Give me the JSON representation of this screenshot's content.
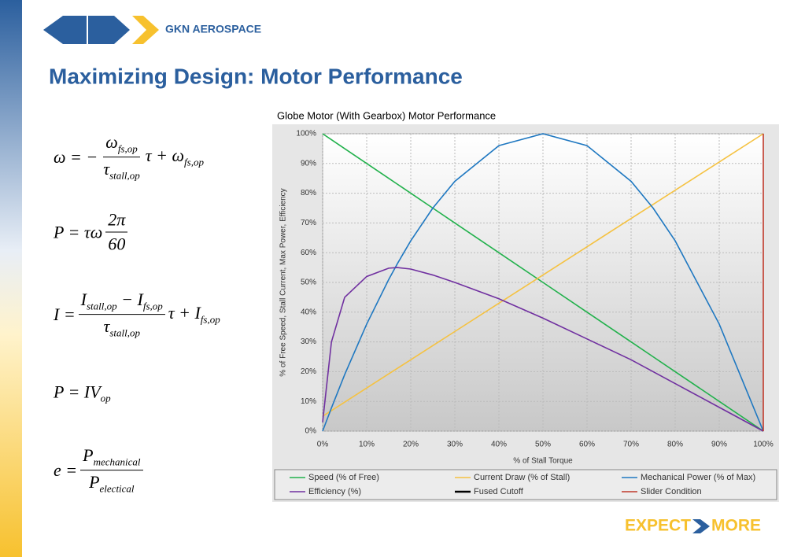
{
  "header": {
    "logo_text": "GKN AEROSPACE",
    "title": "Maximizing Design: Motor Performance"
  },
  "equations": [
    {
      "lhs": [
        {
          "text": "ω = −"
        }
      ],
      "num": [
        {
          "text": "ω",
          "sub": "fs,op"
        }
      ],
      "den": [
        {
          "text": "τ",
          "sub": "stall,op"
        }
      ],
      "rhs": [
        {
          "text": "τ + ω",
          "sub": "fs,op"
        }
      ]
    },
    {
      "lhs": [
        {
          "text": "P = τω"
        }
      ],
      "num": [
        {
          "text": "2π"
        }
      ],
      "den": [
        {
          "text": "60"
        }
      ]
    },
    {
      "lhs": [
        {
          "text": "I ="
        }
      ],
      "num": [
        {
          "text": "I",
          "sub": "stall,op"
        },
        {
          "text": " − I",
          "sub": "fs,op"
        }
      ],
      "den": [
        {
          "text": "τ",
          "sub": "stall,op"
        }
      ],
      "rhs": [
        {
          "text": "τ + I",
          "sub": "fs,op"
        }
      ]
    },
    {
      "lhs": [
        {
          "text": "P = IV",
          "sub": "op"
        }
      ]
    },
    {
      "lhs": [
        {
          "text": "e ="
        }
      ],
      "num": [
        {
          "text": "P",
          "sub": "mechanical"
        }
      ],
      "den": [
        {
          "text": "P",
          "sub": "electical"
        }
      ]
    }
  ],
  "footer": {
    "left": "EXPECT",
    "right": "MORE"
  },
  "chart_data": {
    "type": "line",
    "title": "Globe Motor (With Gearbox) Motor Performance",
    "x_label": "% of Stall Torque",
    "y_label": "% of Free Speed, Stall Current, Max Power, Efficiency",
    "x": [
      0,
      2,
      5,
      10,
      15,
      17,
      20,
      25,
      30,
      40,
      50,
      60,
      70,
      75,
      80,
      90,
      100
    ],
    "series": [
      {
        "name": "Speed (% of Free)",
        "color": "#22b14c",
        "values": [
          100,
          98,
          95,
          90,
          85,
          83,
          80,
          75,
          70,
          60,
          50,
          40,
          30,
          25,
          20,
          10,
          0
        ]
      },
      {
        "name": "Current Draw (% of Stall)",
        "color": "#f5c242",
        "values": [
          5,
          6.9,
          9.75,
          14.5,
          19.25,
          21.15,
          24,
          28.75,
          33.5,
          43,
          52.5,
          62,
          71.5,
          76.25,
          81,
          90.5,
          100
        ]
      },
      {
        "name": "Mechanical Power (% of Max)",
        "color": "#1f78c1",
        "values": [
          0,
          7.8,
          19,
          36,
          51,
          56.4,
          64,
          75,
          84,
          96,
          100,
          96,
          84,
          75,
          64,
          36,
          0
        ]
      },
      {
        "name": "Efficiency (%)",
        "color": "#7030a0",
        "values": [
          3,
          30,
          45,
          52,
          54.8,
          55,
          54.5,
          52.5,
          50,
          44.5,
          38,
          31,
          24,
          20,
          16,
          8,
          0
        ]
      },
      {
        "name": "Fused Cutoff",
        "color": "#000000",
        "values": [
          null,
          null,
          null,
          null,
          null,
          null,
          null,
          null,
          null,
          null,
          null,
          null,
          null,
          null,
          null,
          null,
          null
        ]
      },
      {
        "name": "Slider Condition",
        "color": "#c0392b",
        "x": [
          100,
          100
        ],
        "values": [
          0,
          100
        ]
      }
    ],
    "xlim": [
      0,
      100
    ],
    "ylim": [
      0,
      100
    ],
    "xticks": [
      {
        "value": 0,
        "label": "0%"
      },
      {
        "value": 10,
        "label": "10%"
      },
      {
        "value": 20,
        "label": "20%"
      },
      {
        "value": 30,
        "label": "30%"
      },
      {
        "value": 40,
        "label": "40%"
      },
      {
        "value": 50,
        "label": "50%"
      },
      {
        "value": 60,
        "label": "60%"
      },
      {
        "value": 70,
        "label": "70%"
      },
      {
        "value": 80,
        "label": "80%"
      },
      {
        "value": 90,
        "label": "90%"
      },
      {
        "value": 100,
        "label": "100%"
      }
    ],
    "yticks": [
      {
        "value": 0,
        "label": "0%"
      },
      {
        "value": 10,
        "label": "10%"
      },
      {
        "value": 20,
        "label": "20%"
      },
      {
        "value": 30,
        "label": "30%"
      },
      {
        "value": 40,
        "label": "40%"
      },
      {
        "value": 50,
        "label": "50%"
      },
      {
        "value": 60,
        "label": "60%"
      },
      {
        "value": 70,
        "label": "70%"
      },
      {
        "value": 80,
        "label": "80%"
      },
      {
        "value": 90,
        "label": "90%"
      },
      {
        "value": 100,
        "label": "100%"
      }
    ],
    "grid": true,
    "legend": "bottom"
  }
}
